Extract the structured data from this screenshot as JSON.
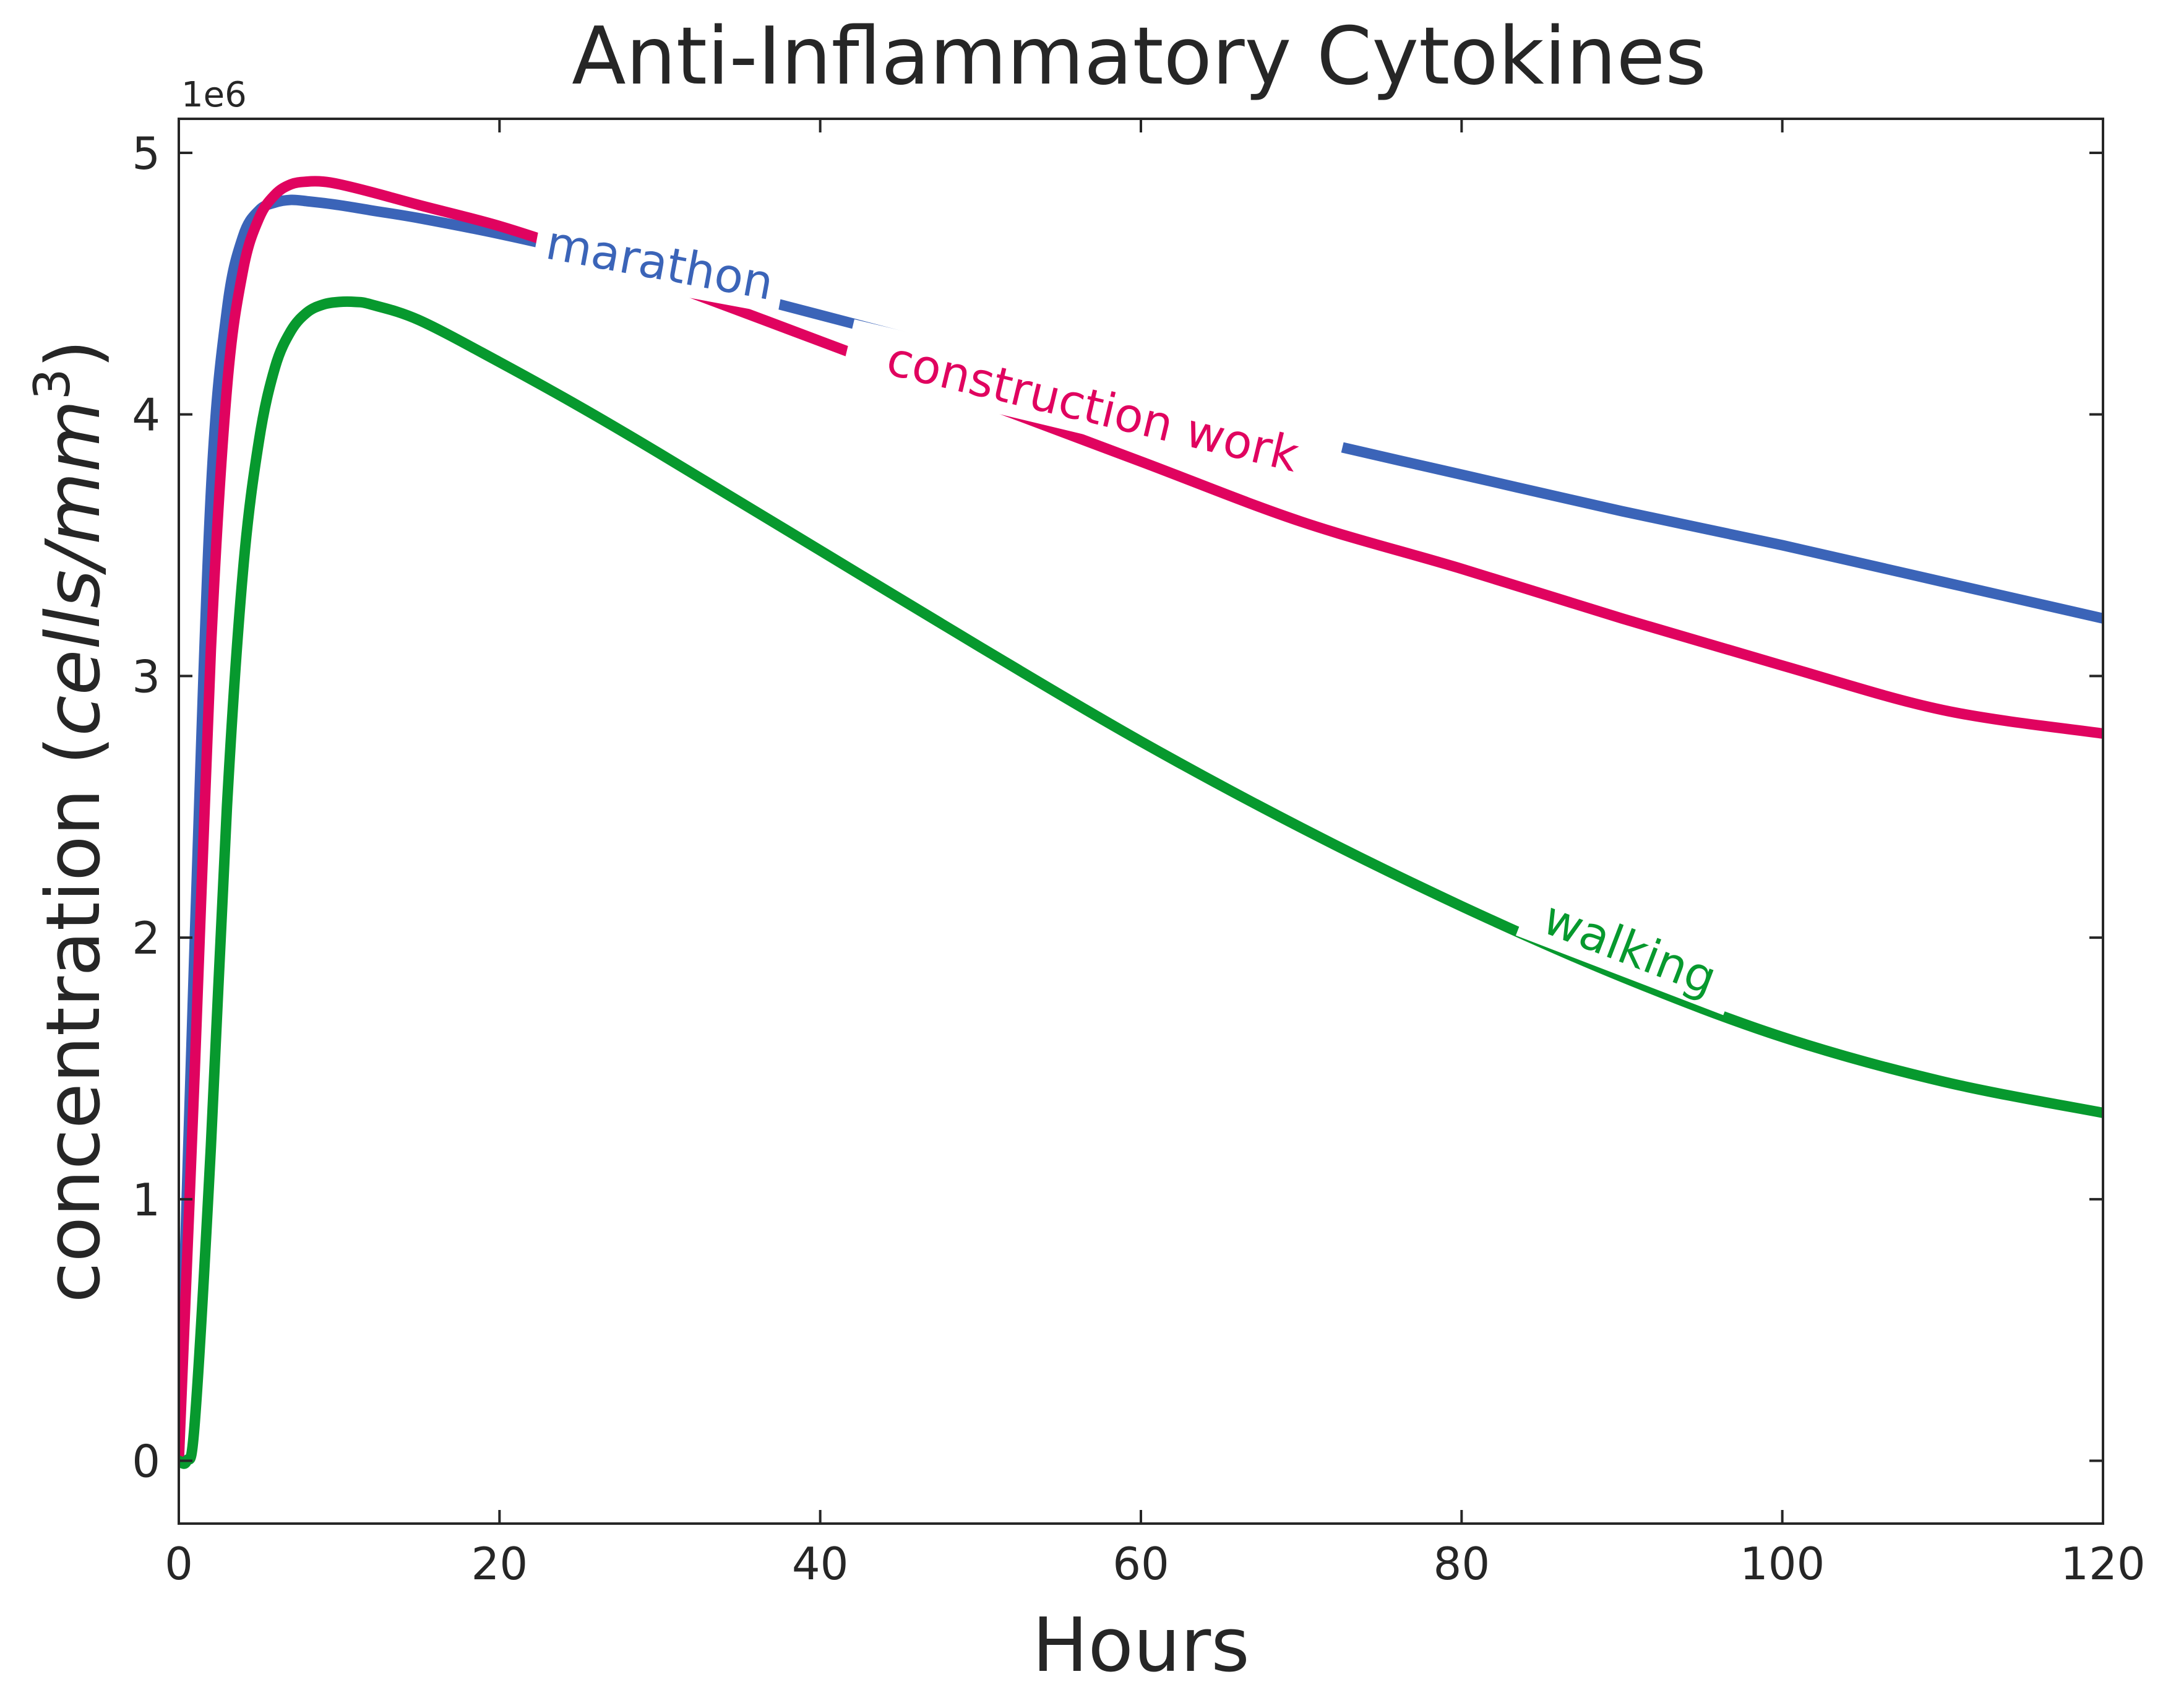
{
  "chart_data": {
    "type": "line",
    "title": "Anti-Inflammatory Cytokines",
    "xlabel": "Hours",
    "ylabel_main": "concentration (",
    "ylabel_unit": "cells/mm",
    "ylabel_exp": "3",
    "ylabel_close": ")",
    "offset_text": "1e6",
    "xlim": [
      0,
      120
    ],
    "ylim": [
      -0.24,
      5.13
    ],
    "y_scale_factor": 1000000,
    "x_ticks": [
      0,
      20,
      40,
      60,
      80,
      100,
      120
    ],
    "x_tick_labels": [
      "0",
      "20",
      "40",
      "60",
      "80",
      "100",
      "120"
    ],
    "y_ticks": [
      0,
      1,
      2,
      3,
      4,
      5
    ],
    "y_tick_labels": [
      "0",
      "1",
      "2",
      "3",
      "4",
      "5"
    ],
    "grid": false,
    "legend": "none (inline labels on lines)",
    "series": [
      {
        "name": "marathon",
        "color": "#3B64B8",
        "x": [
          0,
          1,
          2,
          3,
          4,
          5,
          6,
          7,
          8,
          10,
          12,
          15,
          20,
          25,
          30,
          40,
          50,
          60,
          70,
          80,
          90,
          100,
          110,
          120
        ],
        "y": [
          0,
          2000000,
          3700000,
          4400000,
          4680000,
          4780000,
          4810000,
          4820000,
          4815000,
          4800000,
          4780000,
          4750000,
          4690000,
          4620000,
          4540000,
          4380000,
          4220000,
          4060000,
          3910000,
          3770000,
          3630000,
          3500000,
          3360000,
          3220000
        ]
      },
      {
        "name": "construction work",
        "color": "#E0035F",
        "x": [
          0,
          1,
          2,
          3,
          4,
          5,
          6,
          7,
          8,
          9,
          10,
          12,
          15,
          20,
          25,
          30,
          40,
          50,
          60,
          70,
          80,
          90,
          100,
          110,
          120
        ],
        "y": [
          0,
          1500000,
          3100000,
          4100000,
          4550000,
          4750000,
          4840000,
          4880000,
          4890000,
          4890000,
          4880000,
          4850000,
          4800000,
          4720000,
          4620000,
          4510000,
          4280000,
          4050000,
          3820000,
          3590000,
          3410000,
          3220000,
          3040000,
          2870000,
          2780000
        ]
      },
      {
        "name": "walking",
        "color": "#07992E",
        "x": [
          0,
          0.5,
          1,
          2,
          3,
          4,
          5,
          6,
          7,
          8,
          9,
          10,
          11,
          12,
          15,
          20,
          25,
          30,
          40,
          50,
          60,
          70,
          80,
          90,
          100,
          110,
          120
        ],
        "y": [
          0,
          0,
          150000,
          1200000,
          2500000,
          3400000,
          3900000,
          4180000,
          4320000,
          4390000,
          4420000,
          4430000,
          4430000,
          4420000,
          4360000,
          4200000,
          4030000,
          3850000,
          3480000,
          3110000,
          2750000,
          2420000,
          2120000,
          1850000,
          1620000,
          1450000,
          1330000
        ]
      }
    ],
    "annotations": [
      {
        "text": "marathon",
        "x": 30,
        "y": 4580000,
        "angle": 10.5,
        "color": "#3B64B8"
      },
      {
        "text": "construction work",
        "x": 57,
        "y": 4030000,
        "angle": 13.5,
        "color": "#E0035F"
      },
      {
        "text": "walking",
        "x": 90.5,
        "y": 1960000,
        "angle": 21,
        "color": "#07992E"
      }
    ]
  }
}
